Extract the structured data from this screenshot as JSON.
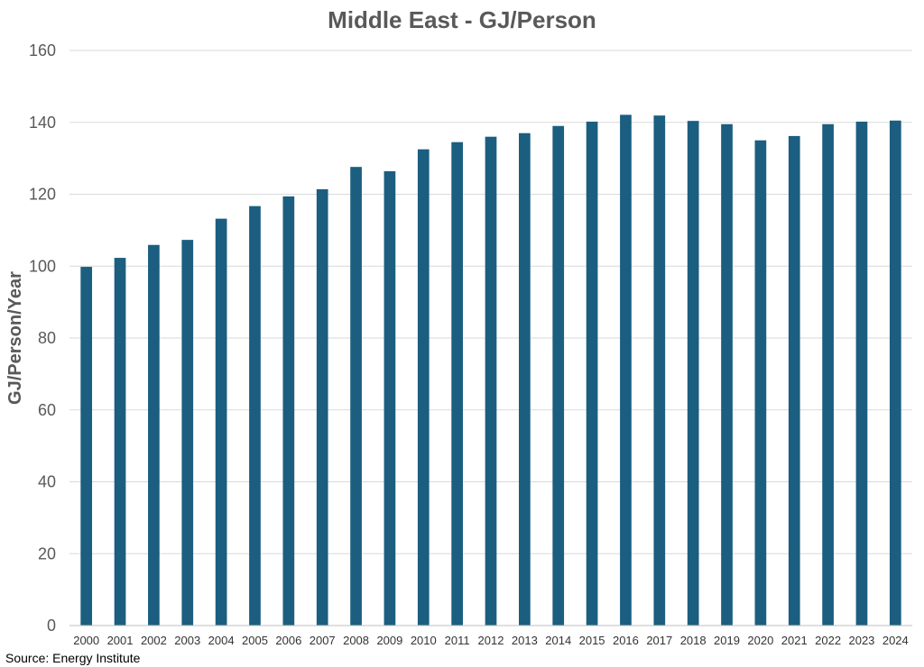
{
  "chart_data": {
    "type": "bar",
    "title": "Middle East - GJ/Person",
    "xlabel": "",
    "ylabel": "GJ/Person/Year",
    "ylim": [
      0,
      160
    ],
    "yticks": [
      0,
      20,
      40,
      60,
      80,
      100,
      120,
      140,
      160
    ],
    "grid": true,
    "bar_color": "#1b5e80",
    "categories": [
      "2000",
      "2001",
      "2002",
      "2003",
      "2004",
      "2005",
      "2006",
      "2007",
      "2008",
      "2009",
      "2010",
      "2011",
      "2012",
      "2013",
      "2014",
      "2015",
      "2016",
      "2017",
      "2018",
      "2019",
      "2020",
      "2021",
      "2022",
      "2023",
      "2024"
    ],
    "values": [
      99.8,
      102.3,
      105.9,
      107.3,
      113.2,
      116.7,
      119.4,
      121.4,
      127.6,
      126.4,
      132.5,
      134.5,
      136.0,
      137.0,
      139.0,
      140.2,
      142.1,
      141.9,
      140.4,
      139.5,
      135.0,
      136.2,
      139.5,
      140.2,
      140.5
    ]
  },
  "source": "Source: Energy Institute"
}
